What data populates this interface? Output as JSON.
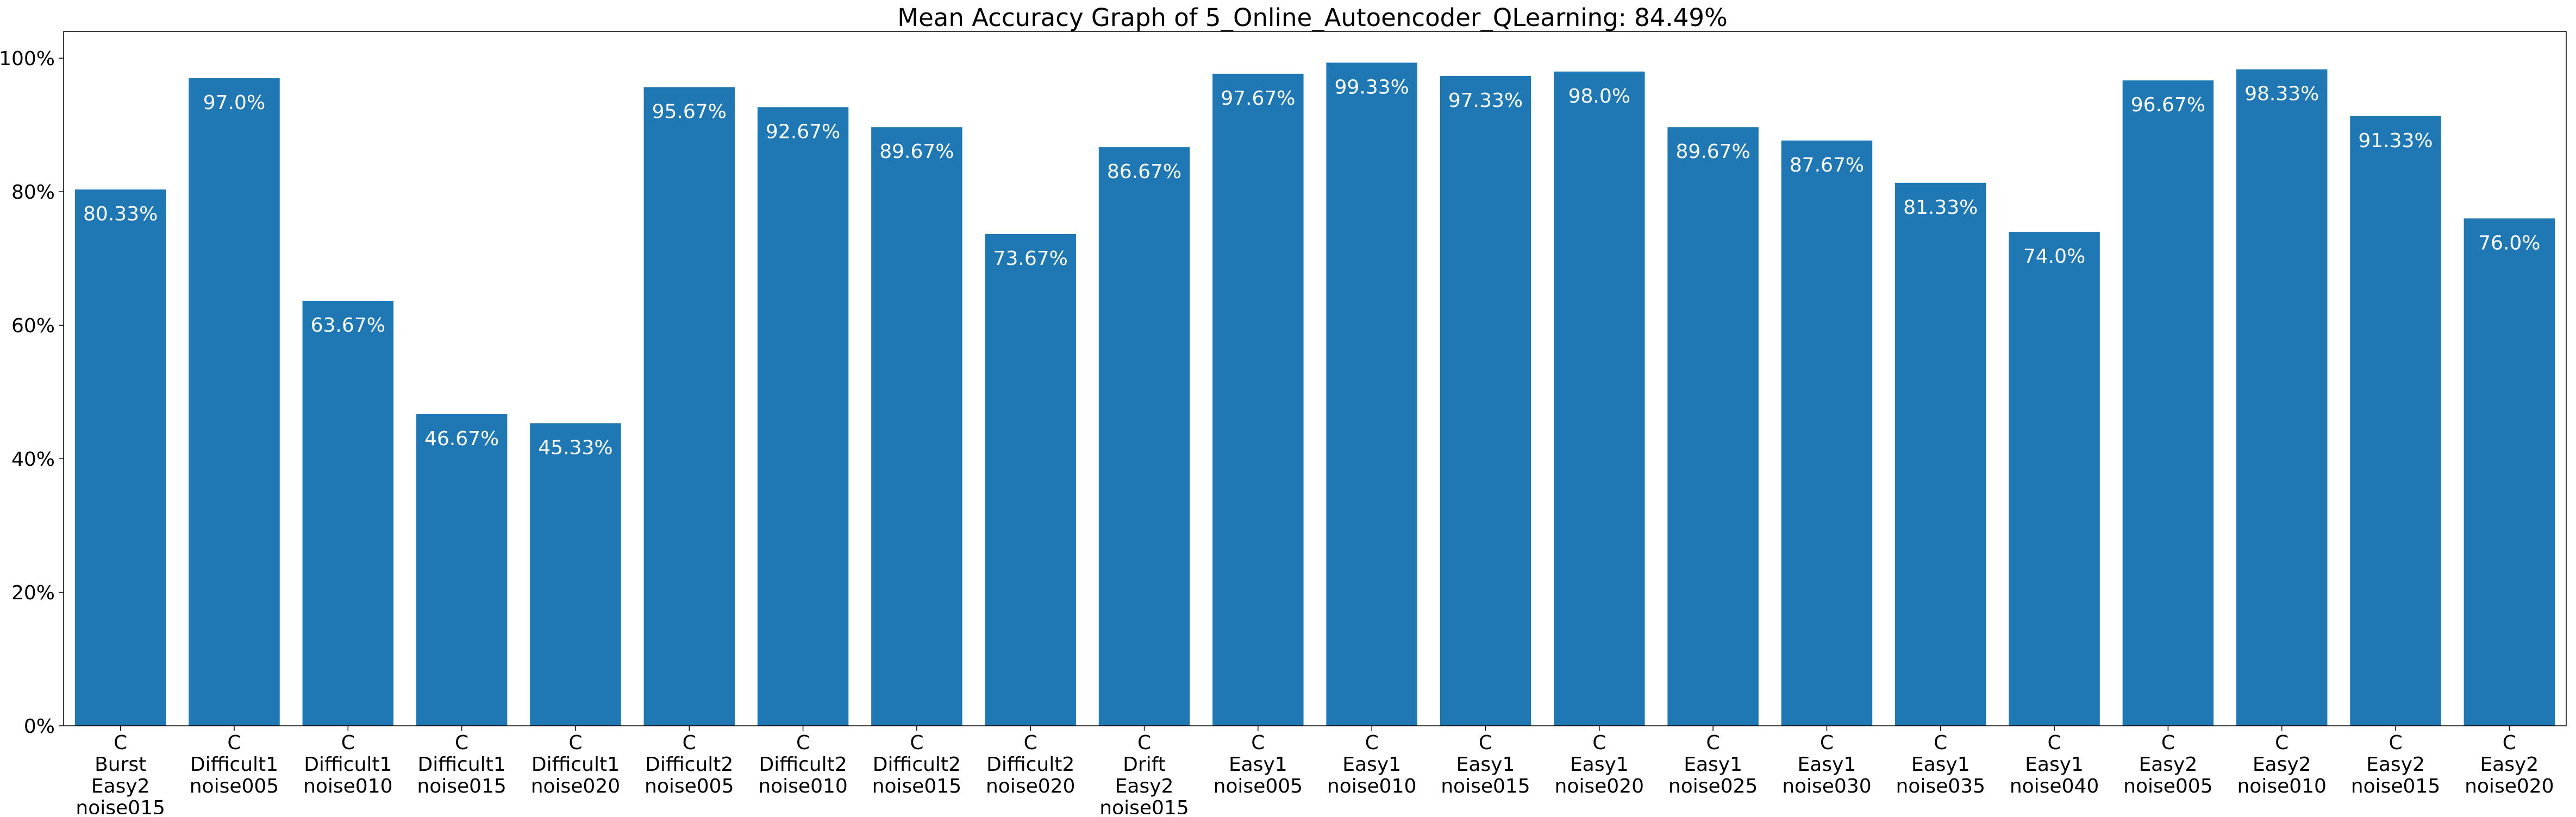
{
  "chart_data": {
    "type": "bar",
    "title": "Mean Accuracy Graph of 5_Online_Autoencoder_QLearning: 84.49%",
    "xlabel": "",
    "ylabel": "",
    "ylim": [
      0,
      104
    ],
    "yticks": [
      0,
      20,
      40,
      60,
      80,
      100
    ],
    "ytick_labels": [
      "0%",
      "20%",
      "40%",
      "60%",
      "80%",
      "100%"
    ],
    "grid": false,
    "bar_color": "#1f77b4",
    "categories": [
      [
        "C",
        "Burst",
        "Easy2",
        "noise015"
      ],
      [
        "C",
        "Difficult1",
        "noise005"
      ],
      [
        "C",
        "Difficult1",
        "noise010"
      ],
      [
        "C",
        "Difficult1",
        "noise015"
      ],
      [
        "C",
        "Difficult1",
        "noise020"
      ],
      [
        "C",
        "Difficult2",
        "noise005"
      ],
      [
        "C",
        "Difficult2",
        "noise010"
      ],
      [
        "C",
        "Difficult2",
        "noise015"
      ],
      [
        "C",
        "Difficult2",
        "noise020"
      ],
      [
        "C",
        "Drift",
        "Easy2",
        "noise015"
      ],
      [
        "C",
        "Easy1",
        "noise005"
      ],
      [
        "C",
        "Easy1",
        "noise010"
      ],
      [
        "C",
        "Easy1",
        "noise015"
      ],
      [
        "C",
        "Easy1",
        "noise020"
      ],
      [
        "C",
        "Easy1",
        "noise025"
      ],
      [
        "C",
        "Easy1",
        "noise030"
      ],
      [
        "C",
        "Easy1",
        "noise035"
      ],
      [
        "C",
        "Easy1",
        "noise040"
      ],
      [
        "C",
        "Easy2",
        "noise005"
      ],
      [
        "C",
        "Easy2",
        "noise010"
      ],
      [
        "C",
        "Easy2",
        "noise015"
      ],
      [
        "C",
        "Easy2",
        "noise020"
      ]
    ],
    "values": [
      80.33,
      97.0,
      63.67,
      46.67,
      45.33,
      95.67,
      92.67,
      89.67,
      73.67,
      86.67,
      97.67,
      99.33,
      97.33,
      98.0,
      89.67,
      87.67,
      81.33,
      74.0,
      96.67,
      98.33,
      91.33,
      76.0
    ],
    "data_labels": [
      "80.33%",
      "97.0%",
      "63.67%",
      "46.67%",
      "45.33%",
      "95.67%",
      "92.67%",
      "89.67%",
      "73.67%",
      "86.67%",
      "97.67%",
      "99.33%",
      "97.33%",
      "98.0%",
      "89.67%",
      "87.67%",
      "81.33%",
      "74.0%",
      "96.67%",
      "98.33%",
      "91.33%",
      "76.0%"
    ]
  }
}
